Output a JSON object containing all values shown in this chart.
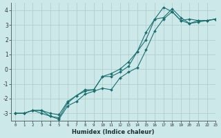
{
  "xlabel": "Humidex (Indice chaleur)",
  "background_color": "#cce8e8",
  "grid_color": "#aacccc",
  "line_color": "#1a7070",
  "x": [
    0,
    1,
    2,
    3,
    4,
    5,
    6,
    7,
    8,
    9,
    10,
    11,
    12,
    13,
    14,
    15,
    16,
    17,
    18,
    19,
    20,
    21,
    22,
    23
  ],
  "y_line1": [
    -3.0,
    -3.0,
    -2.8,
    -3.0,
    -3.2,
    -3.3,
    -2.3,
    -1.8,
    -1.5,
    -1.4,
    -0.5,
    -0.5,
    -0.2,
    0.2,
    1.2,
    2.0,
    3.4,
    3.5,
    4.1,
    3.5,
    3.1,
    3.2,
    3.3,
    3.4
  ],
  "y_line2": [
    -3.0,
    -3.0,
    -2.8,
    -2.8,
    -3.2,
    -3.4,
    -2.5,
    -2.2,
    -1.7,
    -1.5,
    -1.3,
    -1.4,
    -0.6,
    -0.2,
    0.1,
    1.3,
    2.6,
    3.4,
    3.9,
    3.3,
    3.4,
    3.3,
    3.3,
    3.4
  ],
  "y_line3": [
    -3.0,
    -3.0,
    -2.8,
    -2.8,
    -3.0,
    -3.1,
    -2.2,
    -1.8,
    -1.4,
    -1.4,
    -0.5,
    -0.3,
    0.0,
    0.5,
    1.2,
    2.5,
    3.4,
    4.2,
    3.9,
    3.3,
    3.1,
    3.3,
    3.3,
    3.4
  ],
  "ylim": [
    -3.5,
    4.5
  ],
  "xlim": [
    -0.5,
    23
  ],
  "yticks": [
    -3,
    -2,
    -1,
    0,
    1,
    2,
    3,
    4
  ],
  "xticks": [
    0,
    1,
    2,
    3,
    4,
    5,
    6,
    7,
    8,
    9,
    10,
    11,
    12,
    13,
    14,
    15,
    16,
    17,
    18,
    19,
    20,
    21,
    22,
    23
  ]
}
